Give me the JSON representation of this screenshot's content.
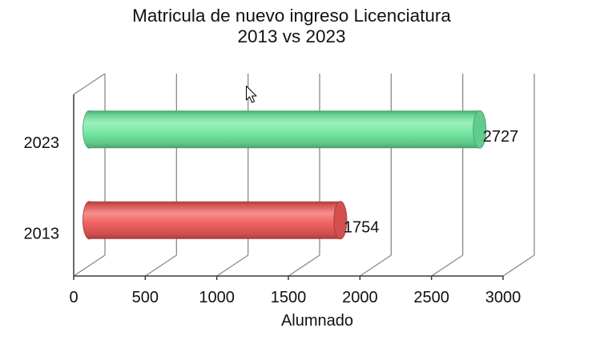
{
  "chart_data": {
    "type": "bar",
    "orientation": "horizontal",
    "title": "Matricula de nuevo ingreso Licenciatura",
    "subtitle": "2013 vs 2023",
    "categories": [
      "2023",
      "2013"
    ],
    "values": [
      2727,
      1754
    ],
    "colors": [
      "#6fe8a0",
      "#f05b5b"
    ],
    "xlabel": "Alumnado",
    "xlim": [
      0,
      3000
    ],
    "xticks": [
      0,
      500,
      1000,
      1500,
      2000,
      2500,
      3000
    ],
    "grid": true
  },
  "icons": {
    "cursor": "mouse-pointer-icon"
  }
}
